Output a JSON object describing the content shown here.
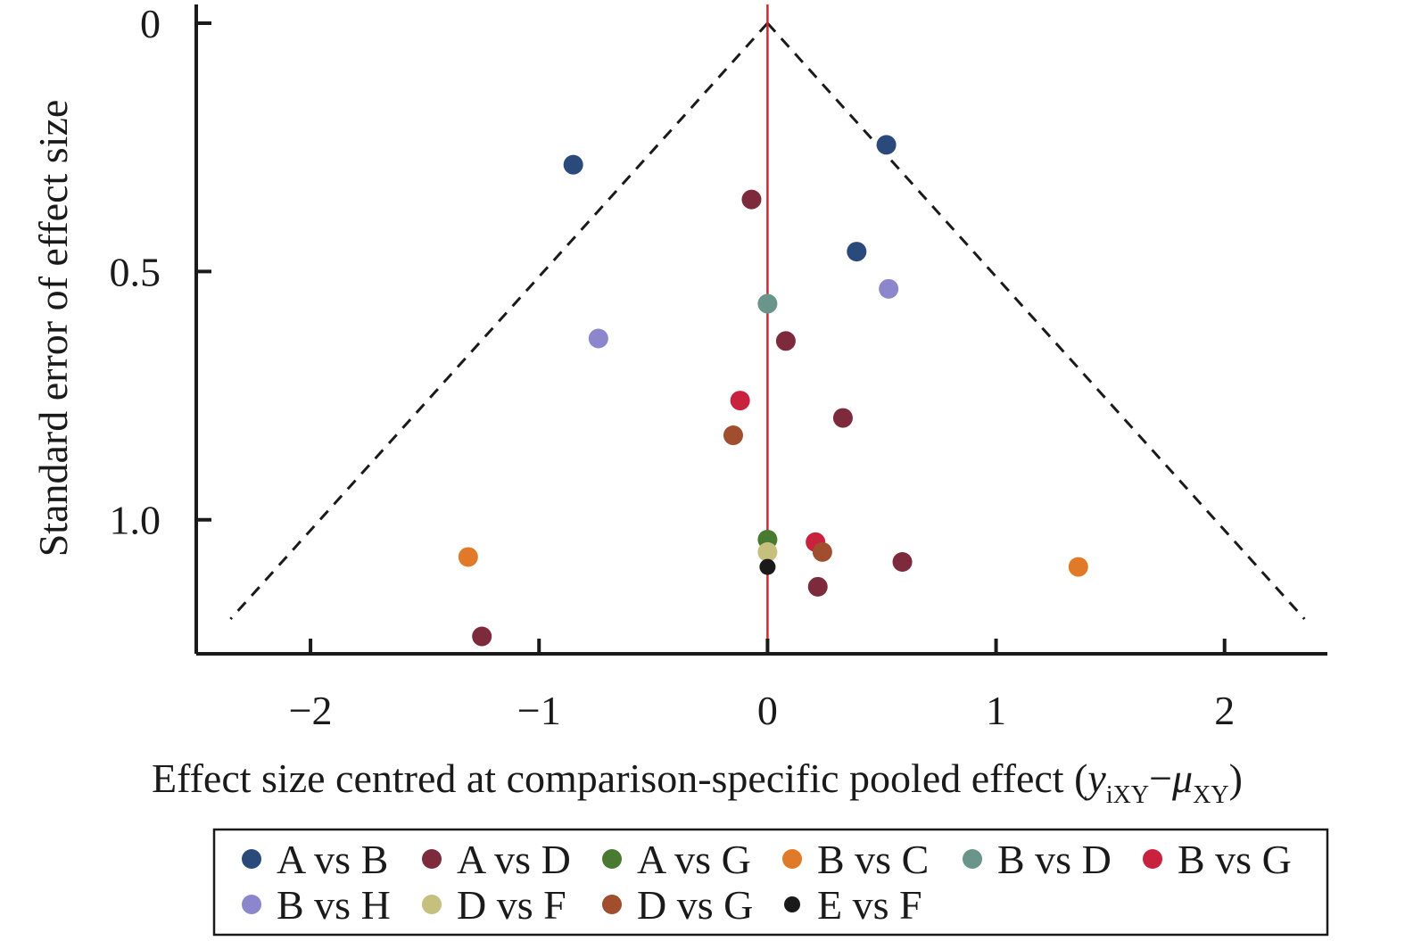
{
  "chart_data": {
    "type": "scatter",
    "xlabel": "Effect size centred at comparison-specific pooled effect (",
    "xlabel_math": {
      "y": "y",
      "y_sub": "iXY",
      "minus": "−",
      "mu": "μ",
      "mu_sub": "XY",
      "close": ")"
    },
    "ylabel": "Standard error of effect size",
    "xlim": [
      -2.5,
      2.45
    ],
    "ylim": [
      0,
      1.27
    ],
    "y_inverted": true,
    "x_ticks": [
      -2,
      -1,
      0,
      1,
      2
    ],
    "x_tick_labels": [
      "−2",
      "−1",
      "0",
      "1",
      "2"
    ],
    "y_ticks": [
      0,
      0.5,
      1.0
    ],
    "y_tick_labels": [
      "0",
      "0.5",
      "1.0"
    ],
    "reference_line": {
      "x": 0,
      "color": "#d22630"
    },
    "funnel": {
      "apex": [
        0,
        0
      ],
      "left_end": [
        -2.35,
        1.2
      ],
      "right_end": [
        2.35,
        1.2
      ]
    },
    "legend_position": "bottom",
    "series": [
      {
        "name": "A vs B",
        "color": "#2a4a7c",
        "points": [
          [
            -0.85,
            0.285
          ],
          [
            0.52,
            0.245
          ],
          [
            0.39,
            0.46
          ]
        ]
      },
      {
        "name": "A vs D",
        "color": "#7d2a3c",
        "points": [
          [
            -0.07,
            0.355
          ],
          [
            0.08,
            0.64
          ],
          [
            0.33,
            0.795
          ],
          [
            0.59,
            1.085
          ],
          [
            0.22,
            1.135
          ],
          [
            -1.25,
            1.235
          ]
        ]
      },
      {
        "name": "A vs G",
        "color": "#4a7a32",
        "points": [
          [
            0.0,
            1.04
          ]
        ]
      },
      {
        "name": "B vs C",
        "color": "#e07a28",
        "points": [
          [
            -1.31,
            1.075
          ],
          [
            1.36,
            1.095
          ]
        ]
      },
      {
        "name": "B vs D",
        "color": "#6a958a",
        "points": [
          [
            0.0,
            0.565
          ]
        ]
      },
      {
        "name": "B vs G",
        "color": "#c8223e",
        "points": [
          [
            -0.12,
            0.76
          ],
          [
            0.21,
            1.045
          ]
        ]
      },
      {
        "name": "B vs H",
        "color": "#8c86cc",
        "points": [
          [
            -0.74,
            0.635
          ],
          [
            0.53,
            0.535
          ]
        ]
      },
      {
        "name": "D vs F",
        "color": "#c5c07e",
        "points": [
          [
            0.0,
            1.065
          ]
        ]
      },
      {
        "name": "D vs G",
        "color": "#a04e2e",
        "points": [
          [
            -0.15,
            0.83
          ],
          [
            0.24,
            1.065
          ]
        ]
      },
      {
        "name": "E vs F",
        "color": "#1a1a1a",
        "points": [
          [
            0.0,
            1.095
          ]
        ]
      }
    ]
  }
}
